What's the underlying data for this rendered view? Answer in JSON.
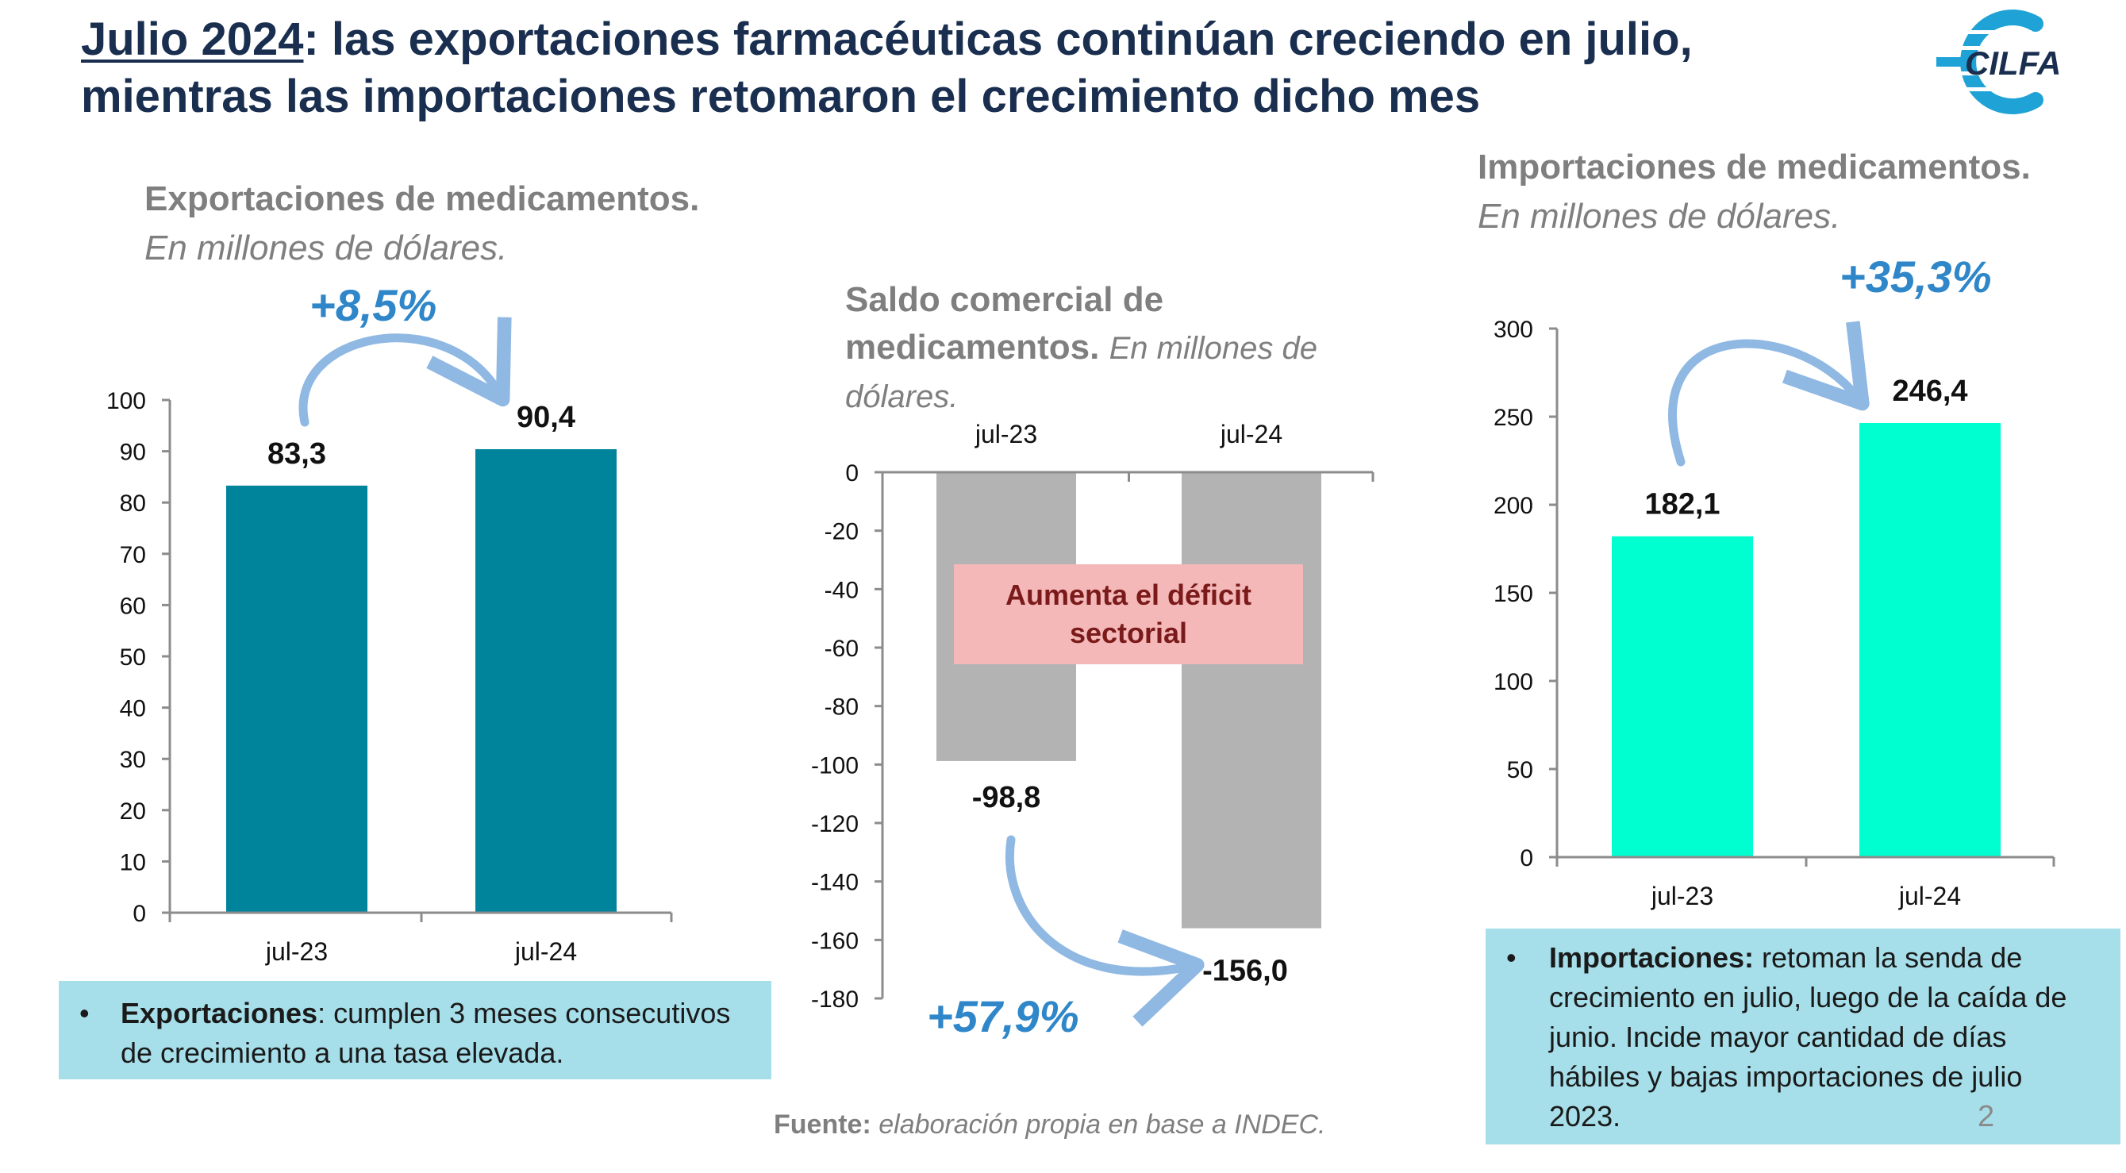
{
  "title": {
    "year": "Julio 2024",
    "rest": ": las exportaciones farmacéuticas continúan creciendo en julio, mientras las importaciones retomaron el crecimiento dicho mes"
  },
  "logo": {
    "text": "CILFA",
    "icon": "cilfa-logo-icon",
    "color": "#1fa3d6"
  },
  "charts": {
    "exports": {
      "heading": "Exportaciones de medicamentos.",
      "subheading": "En millones de dólares.",
      "growth": "+8,5%",
      "color": "#00849c",
      "note_bold": "Exportaciones",
      "note_text": ": cumplen 3 meses consecutivos de crecimiento a una tasa elevada."
    },
    "balance": {
      "heading": "Saldo comercial de medicamentos.",
      "subheading": "En millones de dólares.",
      "growth": "+57,9%",
      "color": "#b3b3b3",
      "annotation": "Aumenta el déficit sectorial"
    },
    "imports": {
      "heading": "Importaciones de medicamentos.",
      "subheading": "En millones de dólares.",
      "growth": "+35,3%",
      "color": "#00ffd0",
      "note_bold": "Importaciones:",
      "note_text": " retoman la senda de crecimiento en julio, luego de la caída de junio. Incide mayor cantidad de días hábiles y bajas importaciones de julio 2023."
    }
  },
  "chart_data": [
    {
      "type": "bar",
      "title": "Exportaciones de medicamentos.",
      "categories": [
        "jul-23",
        "jul-24"
      ],
      "values": [
        83.3,
        90.4
      ],
      "value_labels": [
        "83,3",
        "90,4"
      ],
      "ylim": [
        0,
        100
      ],
      "yticks": [
        0,
        10,
        20,
        30,
        40,
        50,
        60,
        70,
        80,
        90,
        100
      ],
      "grid": false,
      "legend": "none"
    },
    {
      "type": "bar",
      "title": "Saldo comercial de medicamentos.",
      "categories": [
        "jul-23",
        "jul-24"
      ],
      "values": [
        -98.8,
        -156.0
      ],
      "value_labels": [
        "-98,8",
        "-156,0"
      ],
      "ylim": [
        -180,
        0
      ],
      "yticks": [
        0,
        -20,
        -40,
        -60,
        -80,
        -100,
        -120,
        -140,
        -160,
        -180
      ],
      "grid": false,
      "legend": "none"
    },
    {
      "type": "bar",
      "title": "Importaciones de medicamentos.",
      "categories": [
        "jul-23",
        "jul-24"
      ],
      "values": [
        182.1,
        246.4
      ],
      "value_labels": [
        "182,1",
        "246,4"
      ],
      "ylim": [
        0,
        300
      ],
      "yticks": [
        0,
        50,
        100,
        150,
        200,
        250,
        300
      ],
      "grid": false,
      "legend": "none"
    }
  ],
  "footer": {
    "source_label": "Fuente:",
    "source_text": " elaboración propia en base a INDEC.",
    "page_number": "2"
  }
}
